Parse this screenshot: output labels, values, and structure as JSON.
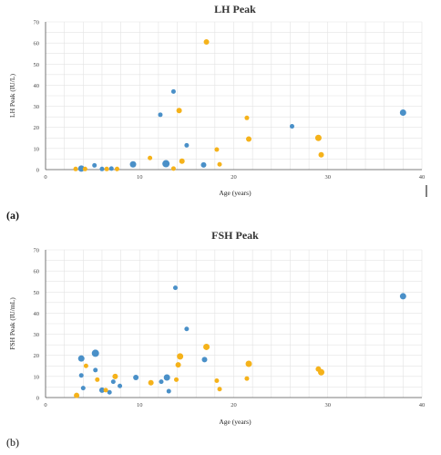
{
  "panel_tags": {
    "a": "(a)",
    "b": "(b)"
  },
  "colors": {
    "series_blue": "#4a90c8",
    "series_yellow": "#f5b21a"
  },
  "chart_data": [
    {
      "type": "scatter",
      "title": "LH Peak",
      "xlabel": "Age (years)",
      "ylabel": "LH Peak (IU/L)",
      "xlim": [
        0,
        40
      ],
      "ylim": [
        0,
        70
      ],
      "xticks": [
        0,
        10,
        20,
        30,
        40
      ],
      "yticks": [
        0,
        10,
        20,
        30,
        40,
        50,
        60,
        70
      ],
      "grid": true,
      "series": [
        {
          "color": "#4a90c8",
          "points": [
            {
              "x": 3.8,
              "y": 0.5,
              "s": 3.5
            },
            {
              "x": 5.2,
              "y": 2.0,
              "s": 2.5
            },
            {
              "x": 6.0,
              "y": 0.3,
              "s": 2.5
            },
            {
              "x": 7.0,
              "y": 0.5,
              "s": 2.5
            },
            {
              "x": 9.3,
              "y": 2.5,
              "s": 3.5
            },
            {
              "x": 12.2,
              "y": 26.0,
              "s": 2.5
            },
            {
              "x": 12.8,
              "y": 2.8,
              "s": 4.0
            },
            {
              "x": 13.6,
              "y": 37.0,
              "s": 2.5
            },
            {
              "x": 15.0,
              "y": 11.5,
              "s": 2.5
            },
            {
              "x": 16.8,
              "y": 2.2,
              "s": 3.0
            },
            {
              "x": 26.2,
              "y": 20.5,
              "s": 2.5
            },
            {
              "x": 38.0,
              "y": 27.0,
              "s": 3.5
            }
          ]
        },
        {
          "color": "#f5b21a",
          "points": [
            {
              "x": 3.2,
              "y": 0.3,
              "s": 2.5
            },
            {
              "x": 4.2,
              "y": 0.3,
              "s": 2.5
            },
            {
              "x": 6.5,
              "y": 0.3,
              "s": 2.5
            },
            {
              "x": 7.6,
              "y": 0.3,
              "s": 2.5
            },
            {
              "x": 11.1,
              "y": 5.5,
              "s": 2.5
            },
            {
              "x": 13.6,
              "y": 0.5,
              "s": 2.5
            },
            {
              "x": 14.2,
              "y": 28.0,
              "s": 3.0
            },
            {
              "x": 14.5,
              "y": 4.0,
              "s": 3.0
            },
            {
              "x": 17.1,
              "y": 60.5,
              "s": 3.0
            },
            {
              "x": 18.2,
              "y": 9.5,
              "s": 2.5
            },
            {
              "x": 18.5,
              "y": 2.5,
              "s": 2.5
            },
            {
              "x": 21.4,
              "y": 24.5,
              "s": 2.5
            },
            {
              "x": 21.6,
              "y": 14.5,
              "s": 3.0
            },
            {
              "x": 29.0,
              "y": 15.0,
              "s": 3.5
            },
            {
              "x": 29.3,
              "y": 7.0,
              "s": 3.0
            }
          ]
        }
      ]
    },
    {
      "type": "scatter",
      "title": "FSH Peak",
      "xlabel": "Age (years)",
      "ylabel": "FSH Peak (IU/mL)",
      "xlim": [
        0,
        40
      ],
      "ylim": [
        0,
        70
      ],
      "xticks": [
        0,
        10,
        20,
        30,
        40
      ],
      "yticks": [
        0,
        10,
        20,
        30,
        40,
        50,
        60,
        70
      ],
      "grid": true,
      "series": [
        {
          "color": "#4a90c8",
          "points": [
            {
              "x": 3.8,
              "y": 18.5,
              "s": 3.5
            },
            {
              "x": 3.8,
              "y": 10.5,
              "s": 2.5
            },
            {
              "x": 4.0,
              "y": 4.5,
              "s": 2.5
            },
            {
              "x": 5.3,
              "y": 21.0,
              "s": 4.0
            },
            {
              "x": 5.3,
              "y": 13.0,
              "s": 2.5
            },
            {
              "x": 6.0,
              "y": 3.5,
              "s": 3.0
            },
            {
              "x": 6.8,
              "y": 2.5,
              "s": 2.5
            },
            {
              "x": 7.2,
              "y": 7.5,
              "s": 2.5
            },
            {
              "x": 7.9,
              "y": 5.5,
              "s": 2.5
            },
            {
              "x": 9.6,
              "y": 9.5,
              "s": 3.0
            },
            {
              "x": 12.3,
              "y": 7.5,
              "s": 2.5
            },
            {
              "x": 12.9,
              "y": 9.5,
              "s": 3.5
            },
            {
              "x": 13.1,
              "y": 3.0,
              "s": 2.5
            },
            {
              "x": 13.8,
              "y": 52.0,
              "s": 2.5
            },
            {
              "x": 15.0,
              "y": 32.5,
              "s": 2.5
            },
            {
              "x": 16.9,
              "y": 18.0,
              "s": 3.0
            },
            {
              "x": 38.0,
              "y": 48.0,
              "s": 3.5
            }
          ]
        },
        {
          "color": "#f5b21a",
          "points": [
            {
              "x": 3.3,
              "y": 1.0,
              "s": 3.0
            },
            {
              "x": 4.3,
              "y": 15.0,
              "s": 2.5
            },
            {
              "x": 5.5,
              "y": 8.5,
              "s": 2.5
            },
            {
              "x": 6.4,
              "y": 3.5,
              "s": 2.5
            },
            {
              "x": 7.4,
              "y": 10.0,
              "s": 3.0
            },
            {
              "x": 11.2,
              "y": 7.0,
              "s": 3.0
            },
            {
              "x": 13.9,
              "y": 8.5,
              "s": 2.5
            },
            {
              "x": 14.1,
              "y": 15.5,
              "s": 3.0
            },
            {
              "x": 14.3,
              "y": 19.5,
              "s": 3.5
            },
            {
              "x": 17.1,
              "y": 24.0,
              "s": 3.5
            },
            {
              "x": 18.2,
              "y": 8.0,
              "s": 2.5
            },
            {
              "x": 18.5,
              "y": 4.0,
              "s": 2.5
            },
            {
              "x": 21.4,
              "y": 9.0,
              "s": 2.5
            },
            {
              "x": 21.6,
              "y": 16.0,
              "s": 3.5
            },
            {
              "x": 29.0,
              "y": 13.5,
              "s": 3.0
            },
            {
              "x": 29.3,
              "y": 12.0,
              "s": 3.5
            }
          ]
        }
      ]
    }
  ]
}
